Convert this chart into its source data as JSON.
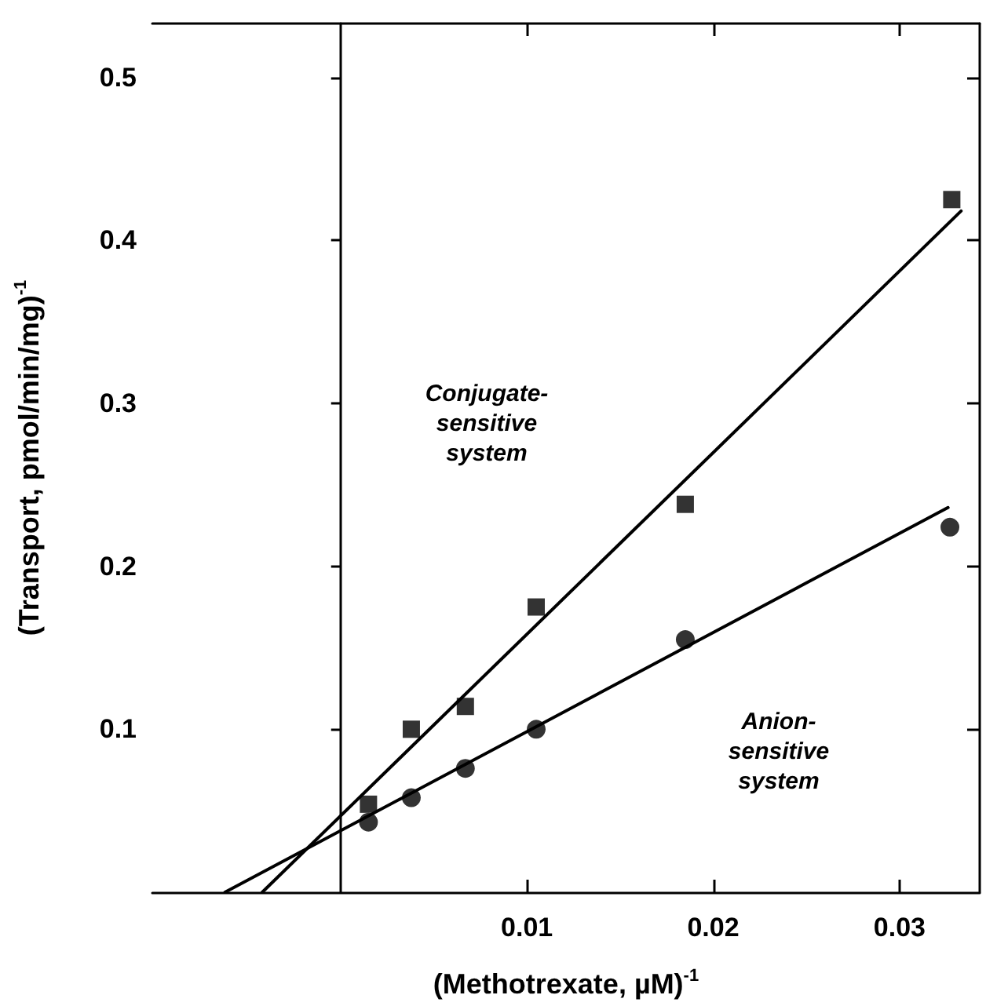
{
  "chart_data": {
    "type": "scatter",
    "xlabel": "(Methotrexate, µM)$^{-1}$",
    "ylabel": "(Transport, pmol/min/mg)$^{-1}$",
    "xlim": [
      -0.0101,
      0.0343
    ],
    "ylim": [
      0,
      0.533
    ],
    "xticks": [
      0.01,
      0.02,
      0.03
    ],
    "yticks": [
      0.1,
      0.2,
      0.3,
      0.4,
      0.5
    ],
    "grid": false,
    "series": [
      {
        "marker": "square",
        "color": "#000000",
        "x": [
          0.0015,
          0.0038,
          0.0067,
          0.0105,
          0.0185,
          0.0328
        ],
        "values": [
          0.054,
          0.1,
          0.114,
          0.175,
          0.238,
          0.425
        ]
      },
      {
        "marker": "circle",
        "color": "#000000",
        "x": [
          0.0015,
          0.0038,
          0.0067,
          0.0105,
          0.0185,
          0.0327
        ],
        "values": [
          0.043,
          0.058,
          0.076,
          0.1,
          0.155,
          0.224
        ]
      },
      {
        "type": "line",
        "marker": "none",
        "line_style": "solid",
        "color": "#000000",
        "x": [
          -0.0042,
          0.0333
        ],
        "values": [
          0,
          0.418
        ]
      },
      {
        "type": "line",
        "marker": "none",
        "line_style": "solid",
        "color": "#000000",
        "x": [
          -0.0062,
          0.0326
        ],
        "values": [
          0,
          0.236
        ]
      }
    ],
    "annotations": [
      "Conjugate-\nsensitive\nsystem",
      "Anion-\nsensitive\nsystem"
    ]
  }
}
